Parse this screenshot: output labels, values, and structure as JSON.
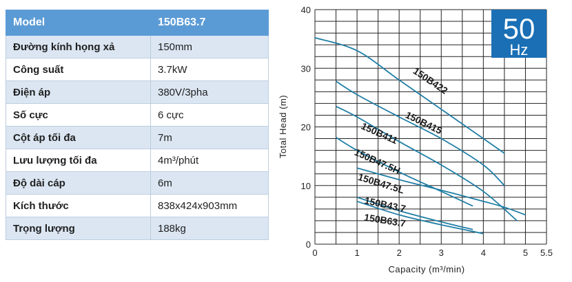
{
  "table": {
    "header": {
      "label": "Model",
      "value": "150B63.7"
    },
    "rows": [
      {
        "label": "Đường kính họng xả",
        "value": "150mm"
      },
      {
        "label": "Công suất",
        "value": "3.7kW"
      },
      {
        "label": "Điện áp",
        "value": "380V/3pha"
      },
      {
        "label": "Số cực",
        "value": "6 cực"
      },
      {
        "label": "Cột áp tối đa",
        "value": "7m"
      },
      {
        "label": "Lưu lượng tối đa",
        "value": "4m³/phút"
      },
      {
        "label": "Độ dài cáp",
        "value": "6m"
      },
      {
        "label": "Kích thước",
        "value": "838x424x903mm"
      },
      {
        "label": "Trọng lượng",
        "value": "188kg"
      }
    ]
  },
  "badge": {
    "number": "50",
    "unit": "Hz",
    "color": "#1a6fb5"
  },
  "chart_data": {
    "type": "line",
    "xlabel": "Capacity (m³/min)",
    "ylabel": "Total Head (m)",
    "xlim": [
      0,
      5.5
    ],
    "ylim": [
      0,
      40
    ],
    "xticks": [
      "0",
      "1",
      "2",
      "3",
      "4",
      "5",
      "5.5"
    ],
    "yticks": [
      "0",
      "10",
      "20",
      "30",
      "40"
    ],
    "grid": true,
    "line_color": "#1f7ea6",
    "series": [
      {
        "name": "150B422",
        "x": [
          0,
          1,
          2,
          3,
          4,
          4.5
        ],
        "y": [
          35.2,
          33,
          28,
          23,
          18,
          15.5
        ]
      },
      {
        "name": "150B415",
        "x": [
          0.5,
          1,
          2,
          3,
          4,
          4.5
        ],
        "y": [
          27.8,
          25.5,
          21.7,
          18,
          13.5,
          10
        ]
      },
      {
        "name": "150B411",
        "x": [
          0.5,
          1,
          2,
          3,
          4,
          4.8
        ],
        "y": [
          23.5,
          21.7,
          17.5,
          13.5,
          9,
          4
        ]
      },
      {
        "name": "150B47.5H",
        "x": [
          0.5,
          1,
          2,
          3,
          3.75
        ],
        "y": [
          18.2,
          16,
          12.3,
          9,
          6.5
        ]
      },
      {
        "name": "150B47.5L",
        "x": [
          1,
          2,
          3,
          4,
          4.5,
          5
        ],
        "y": [
          13,
          11,
          9.2,
          7.3,
          6.3,
          5
        ]
      },
      {
        "name": "150B43.7",
        "x": [
          1,
          2,
          3,
          3.75
        ],
        "y": [
          8,
          5.7,
          3.8,
          2.5
        ]
      },
      {
        "name": "150B63.7",
        "x": [
          1,
          2,
          3,
          4
        ],
        "y": [
          7.3,
          5,
          3.3,
          1.8
        ]
      }
    ],
    "labels": [
      {
        "text": "150B422",
        "x": 2.7,
        "y": 27.4,
        "angle": 34
      },
      {
        "text": "150B415",
        "x": 2.55,
        "y": 20.2,
        "angle": 26
      },
      {
        "text": "150B411",
        "x": 1.5,
        "y": 18.4,
        "angle": 24
      },
      {
        "text": "150B47.5H",
        "x": 1.45,
        "y": 13.6,
        "angle": 24
      },
      {
        "text": "150B47.5L",
        "x": 1.55,
        "y": 9.8,
        "angle": 17
      },
      {
        "text": "150B43.7",
        "x": 1.65,
        "y": 6.2,
        "angle": 12
      },
      {
        "text": "150B63.7",
        "x": 1.65,
        "y": 3.5,
        "angle": 9
      }
    ]
  }
}
